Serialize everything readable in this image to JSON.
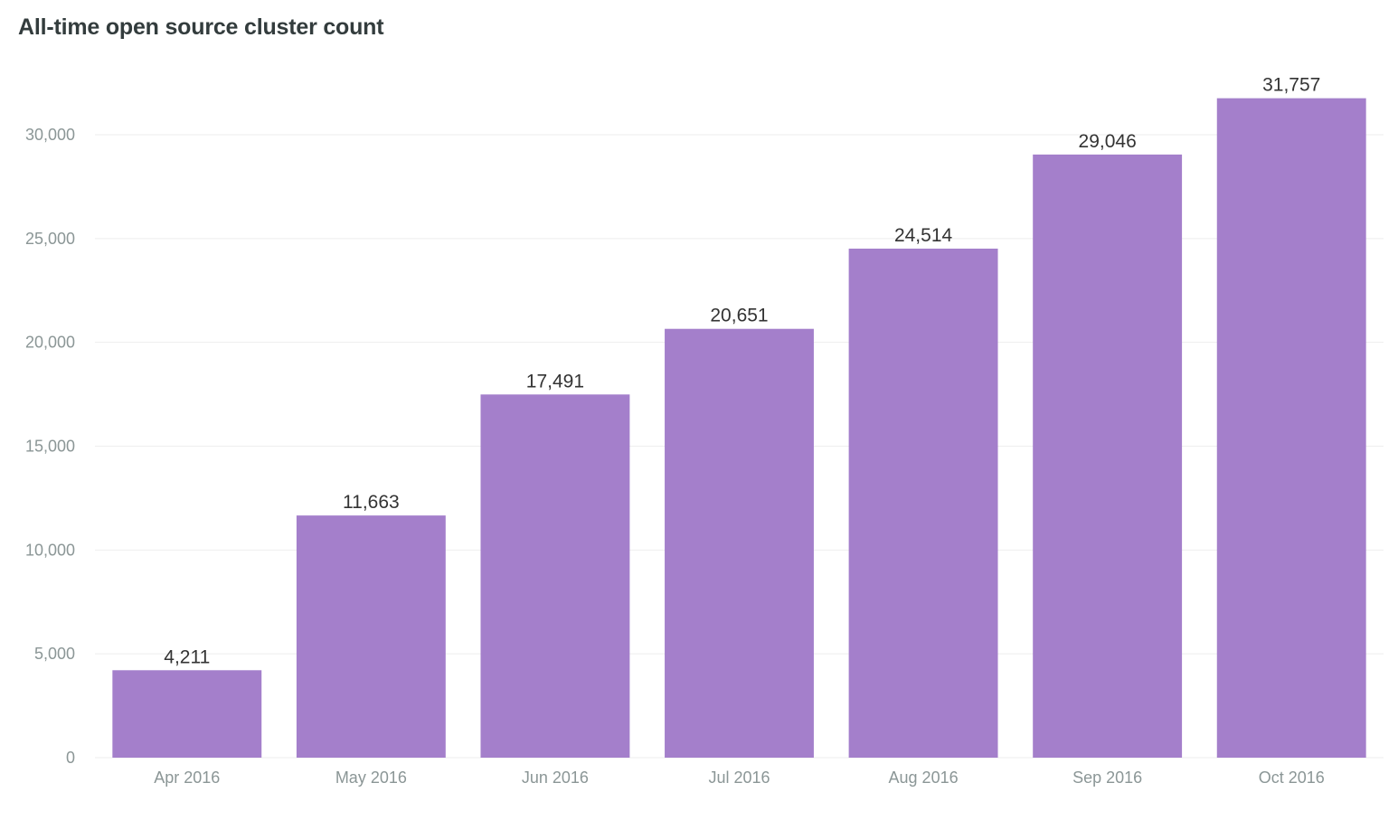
{
  "title": "All-time open source cluster count",
  "chart_data": {
    "type": "bar",
    "title": "All-time open source cluster count",
    "xlabel": "",
    "ylabel": "",
    "categories": [
      "Apr 2016",
      "May 2016",
      "Jun 2016",
      "Jul 2016",
      "Aug 2016",
      "Sep 2016",
      "Oct 2016"
    ],
    "values": [
      4211,
      11663,
      17491,
      20651,
      24514,
      29046,
      31757
    ],
    "value_labels": [
      "4,211",
      "11,663",
      "17,491",
      "20,651",
      "24,514",
      "29,046",
      "31,757"
    ],
    "ylim": [
      0,
      30000
    ],
    "yticks": [
      0,
      5000,
      10000,
      15000,
      20000,
      25000,
      30000
    ],
    "ytick_labels": [
      "0",
      "5,000",
      "10,000",
      "15,000",
      "20,000",
      "25,000",
      "30,000"
    ],
    "grid": true,
    "legend": "none",
    "colors": {
      "bar": "#a47fcb",
      "grid": "#eeeeee",
      "tick_text": "#8b9696",
      "value_text": "#333333",
      "title_text": "#333c3d"
    }
  }
}
